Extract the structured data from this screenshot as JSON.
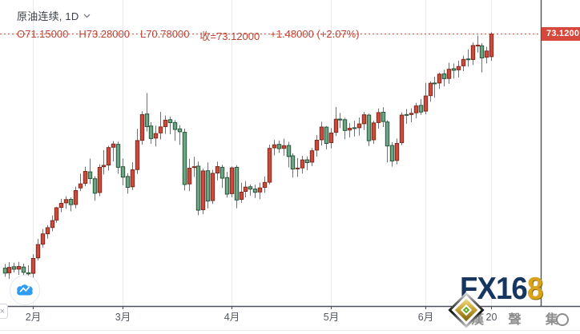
{
  "header": {
    "symbol_title": "原油连续, 1D",
    "ohlc": {
      "open": "O71.15000",
      "high": "H73.28000",
      "low": "L70.78000",
      "close": "收=73.12000",
      "change": "+1.48000 (+2.07%)"
    }
  },
  "price_scale": {
    "last_price_label": "73.1200"
  },
  "logo": {
    "main": "FX16",
    "accent": "8"
  },
  "watermark": {
    "company": "漢 聲 集 團"
  },
  "axis_tab_glyph": "×",
  "colors": {
    "up_fill": "#cb4a3b",
    "up_border": "#7e2a1d",
    "down_fill": "#6ba583",
    "down_border": "#28553b",
    "wick": "#6f7177",
    "last_price_line": "#d8402c",
    "tag_bg": "#d6483c",
    "grid": "#e4eef8",
    "axis_line": "#4c505b",
    "axis_text": "#535861",
    "legend_text": "#bd4334",
    "brand_navy": "#16365f",
    "brand_gold": "#d9a31b"
  },
  "chart_data": {
    "type": "candlestick",
    "title": "原油连续, 1D",
    "interval": "1D",
    "last_price": 73.12,
    "change": 1.48,
    "change_pct": 2.07,
    "ylim": [
      49.4,
      74.0
    ],
    "grid": "vertical-only",
    "up_color_convention": "red-up-green-down",
    "x_ticks": [
      {
        "index": 6,
        "label": "2月"
      },
      {
        "index": 25,
        "label": "3月"
      },
      {
        "index": 48,
        "label": "4月"
      },
      {
        "index": 69,
        "label": "5月"
      },
      {
        "index": 89,
        "label": "6月"
      },
      {
        "index": 103,
        "label": "20"
      }
    ],
    "dates": [
      "2021-01-22",
      "2021-01-25",
      "2021-01-26",
      "2021-01-27",
      "2021-01-28",
      "2021-01-29",
      "2021-02-01",
      "2021-02-02",
      "2021-02-03",
      "2021-02-04",
      "2021-02-05",
      "2021-02-08",
      "2021-02-09",
      "2021-02-10",
      "2021-02-11",
      "2021-02-12",
      "2021-02-16",
      "2021-02-17",
      "2021-02-18",
      "2021-02-19",
      "2021-02-22",
      "2021-02-23",
      "2021-02-24",
      "2021-02-25",
      "2021-02-26",
      "2021-03-01",
      "2021-03-02",
      "2021-03-03",
      "2021-03-04",
      "2021-03-05",
      "2021-03-08",
      "2021-03-09",
      "2021-03-10",
      "2021-03-11",
      "2021-03-12",
      "2021-03-15",
      "2021-03-16",
      "2021-03-17",
      "2021-03-18",
      "2021-03-19",
      "2021-03-22",
      "2021-03-23",
      "2021-03-24",
      "2021-03-25",
      "2021-03-26",
      "2021-03-29",
      "2021-03-30",
      "2021-03-31",
      "2021-04-01",
      "2021-04-05",
      "2021-04-06",
      "2021-04-07",
      "2021-04-08",
      "2021-04-09",
      "2021-04-12",
      "2021-04-13",
      "2021-04-14",
      "2021-04-15",
      "2021-04-16",
      "2021-04-19",
      "2021-04-20",
      "2021-04-21",
      "2021-04-22",
      "2021-04-23",
      "2021-04-26",
      "2021-04-27",
      "2021-04-28",
      "2021-04-29",
      "2021-04-30",
      "2021-05-03",
      "2021-05-04",
      "2021-05-05",
      "2021-05-06",
      "2021-05-07",
      "2021-05-10",
      "2021-05-11",
      "2021-05-12",
      "2021-05-13",
      "2021-05-14",
      "2021-05-17",
      "2021-05-18",
      "2021-05-19",
      "2021-05-20",
      "2021-05-21",
      "2021-05-24",
      "2021-05-25",
      "2021-05-26",
      "2021-05-27",
      "2021-05-28",
      "2021-06-01",
      "2021-06-02",
      "2021-06-03",
      "2021-06-04",
      "2021-06-07",
      "2021-06-08",
      "2021-06-09",
      "2021-06-10",
      "2021-06-11",
      "2021-06-14",
      "2021-06-15",
      "2021-06-16",
      "2021-06-17",
      "2021-06-18",
      "2021-06-21"
    ],
    "ohlc": [
      [
        52.7,
        53.06,
        51.96,
        52.27
      ],
      [
        52.3,
        53.22,
        51.76,
        52.77
      ],
      [
        52.83,
        53.17,
        52.33,
        52.61
      ],
      [
        52.62,
        53.25,
        52.12,
        52.85
      ],
      [
        52.8,
        53.1,
        51.85,
        52.34
      ],
      [
        52.3,
        52.95,
        51.64,
        52.2
      ],
      [
        52.25,
        53.92,
        51.87,
        53.55
      ],
      [
        53.6,
        55.26,
        53.37,
        54.76
      ],
      [
        54.8,
        56.12,
        54.51,
        55.69
      ],
      [
        55.7,
        56.46,
        55.27,
        56.23
      ],
      [
        56.25,
        57.29,
        55.93,
        56.85
      ],
      [
        56.9,
        58.05,
        56.66,
        57.97
      ],
      [
        58.0,
        58.76,
        57.58,
        58.36
      ],
      [
        58.4,
        58.97,
        57.88,
        58.68
      ],
      [
        58.7,
        58.88,
        57.66,
        58.24
      ],
      [
        58.26,
        59.82,
        57.92,
        59.47
      ],
      [
        59.7,
        60.95,
        59.42,
        60.05
      ],
      [
        60.1,
        61.55,
        59.86,
        61.14
      ],
      [
        61.1,
        62.26,
        60.04,
        60.52
      ],
      [
        60.5,
        60.72,
        58.58,
        59.24
      ],
      [
        59.3,
        61.76,
        58.98,
        61.49
      ],
      [
        61.55,
        63.0,
        60.87,
        61.67
      ],
      [
        61.7,
        63.37,
        61.22,
        63.22
      ],
      [
        63.25,
        63.79,
        62.01,
        63.53
      ],
      [
        63.5,
        63.73,
        60.93,
        61.5
      ],
      [
        61.55,
        62.27,
        59.92,
        60.64
      ],
      [
        60.7,
        60.99,
        59.2,
        59.75
      ],
      [
        59.8,
        61.94,
        59.52,
        61.28
      ],
      [
        61.3,
        64.86,
        60.92,
        63.83
      ],
      [
        63.85,
        66.39,
        63.48,
        66.09
      ],
      [
        66.15,
        67.98,
        64.63,
        65.05
      ],
      [
        65.1,
        65.44,
        63.55,
        64.01
      ],
      [
        64.05,
        65.13,
        63.31,
        64.44
      ],
      [
        64.5,
        66.33,
        63.93,
        65.02
      ],
      [
        65.05,
        66.02,
        64.41,
        65.61
      ],
      [
        65.65,
        65.93,
        64.38,
        65.39
      ],
      [
        65.4,
        65.61,
        63.81,
        64.8
      ],
      [
        64.85,
        65.18,
        63.46,
        64.6
      ],
      [
        64.55,
        64.87,
        59.49,
        60.0
      ],
      [
        60.05,
        62.24,
        59.42,
        61.42
      ],
      [
        61.5,
        62.41,
        60.66,
        61.55
      ],
      [
        61.6,
        62.0,
        57.32,
        57.76
      ],
      [
        57.8,
        61.39,
        57.41,
        61.18
      ],
      [
        61.2,
        61.93,
        57.92,
        58.56
      ],
      [
        58.6,
        61.28,
        58.3,
        60.97
      ],
      [
        61.0,
        62.0,
        60.36,
        61.56
      ],
      [
        61.5,
        61.72,
        59.7,
        60.55
      ],
      [
        60.6,
        61.11,
        58.85,
        59.16
      ],
      [
        59.2,
        61.57,
        58.89,
        61.45
      ],
      [
        61.5,
        61.68,
        57.93,
        58.65
      ],
      [
        58.7,
        60.16,
        58.41,
        59.33
      ],
      [
        59.4,
        60.3,
        58.88,
        59.77
      ],
      [
        59.8,
        60.0,
        59.03,
        59.6
      ],
      [
        59.6,
        59.98,
        58.82,
        59.32
      ],
      [
        59.35,
        60.16,
        58.72,
        59.7
      ],
      [
        59.75,
        60.7,
        59.27,
        60.18
      ],
      [
        60.2,
        63.48,
        60.02,
        63.15
      ],
      [
        63.2,
        63.89,
        62.54,
        63.46
      ],
      [
        63.5,
        63.83,
        62.76,
        63.13
      ],
      [
        63.15,
        63.99,
        62.52,
        63.38
      ],
      [
        63.4,
        63.71,
        61.49,
        62.44
      ],
      [
        62.5,
        62.71,
        60.61,
        61.35
      ],
      [
        61.4,
        62.31,
        60.66,
        61.43
      ],
      [
        61.45,
        62.5,
        60.96,
        62.14
      ],
      [
        62.15,
        62.45,
        61.25,
        61.91
      ],
      [
        61.95,
        63.18,
        61.6,
        62.94
      ],
      [
        63.0,
        64.3,
        62.43,
        63.86
      ],
      [
        63.9,
        65.47,
        63.39,
        65.01
      ],
      [
        65.0,
        65.1,
        63.07,
        63.58
      ],
      [
        63.65,
        64.92,
        63.15,
        64.49
      ],
      [
        64.55,
        66.76,
        64.23,
        65.69
      ],
      [
        65.7,
        66.24,
        64.92,
        65.63
      ],
      [
        65.65,
        65.82,
        63.96,
        64.71
      ],
      [
        64.75,
        65.35,
        64.11,
        64.9
      ],
      [
        64.95,
        65.55,
        64.18,
        64.92
      ],
      [
        64.95,
        65.85,
        64.26,
        65.28
      ],
      [
        65.3,
        66.34,
        64.74,
        66.08
      ],
      [
        66.05,
        66.18,
        63.36,
        63.82
      ],
      [
        63.9,
        65.55,
        63.55,
        65.37
      ],
      [
        65.4,
        66.63,
        64.87,
        66.27
      ],
      [
        66.3,
        66.74,
        65.01,
        65.49
      ],
      [
        65.45,
        65.6,
        61.92,
        63.36
      ],
      [
        63.4,
        63.69,
        61.56,
        62.05
      ],
      [
        62.1,
        64.01,
        61.76,
        63.58
      ],
      [
        63.65,
        66.29,
        63.43,
        66.05
      ],
      [
        66.1,
        66.59,
        65.29,
        66.07
      ],
      [
        66.1,
        66.64,
        65.43,
        66.21
      ],
      [
        66.25,
        67.12,
        65.77,
        66.85
      ],
      [
        66.9,
        67.45,
        66.07,
        66.32
      ],
      [
        66.4,
        68.87,
        66.12,
        67.72
      ],
      [
        67.75,
        68.99,
        67.21,
        68.83
      ],
      [
        68.85,
        69.4,
        67.58,
        68.81
      ],
      [
        68.85,
        69.76,
        68.33,
        69.62
      ],
      [
        69.65,
        70.0,
        68.55,
        69.23
      ],
      [
        69.25,
        70.62,
        68.78,
        70.05
      ],
      [
        70.1,
        70.55,
        69.24,
        69.96
      ],
      [
        70.0,
        70.8,
        69.33,
        70.29
      ],
      [
        70.35,
        71.24,
        69.89,
        70.91
      ],
      [
        70.95,
        71.78,
        70.28,
        70.88
      ],
      [
        70.9,
        72.39,
        70.44,
        72.12
      ],
      [
        72.15,
        72.99,
        71.51,
        72.15
      ],
      [
        72.1,
        72.34,
        69.77,
        71.04
      ],
      [
        71.1,
        72.01,
        70.56,
        71.64
      ],
      [
        71.15,
        73.28,
        70.78,
        73.12
      ]
    ]
  }
}
